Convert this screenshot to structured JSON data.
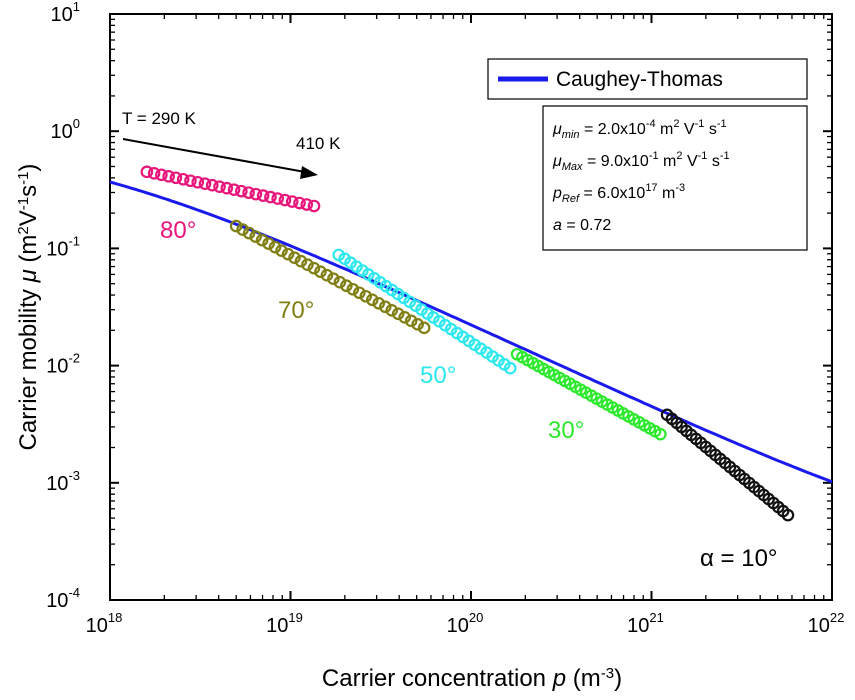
{
  "chart_data": {
    "type": "scatter",
    "xlabel": "Carrier concentration",
    "xlabel_symbol": "p",
    "xlabel_unit": "(m",
    "xlabel_unit_exp": "-3",
    "xlabel_unit_end": ")",
    "ylabel": "Carrier mobility",
    "ylabel_symbol": "μ",
    "ylabel_unit": "(m",
    "ylabel_unit_exp1": "2",
    "ylabel_unit_mid1": "V",
    "ylabel_unit_exp2": "-1",
    "ylabel_unit_mid2": "s",
    "ylabel_unit_exp3": "-1",
    "ylabel_unit_end": ")",
    "x_scale": "log",
    "y_scale": "log",
    "xlim": [
      1e+18,
      1e+22
    ],
    "ylim": [
      0.0001,
      10
    ],
    "x_ticks": [
      {
        "value": 1e+18,
        "base": "10",
        "exp": "18"
      },
      {
        "value": 1e+19,
        "base": "10",
        "exp": "19"
      },
      {
        "value": 1e+20,
        "base": "10",
        "exp": "20"
      },
      {
        "value": 1e+21,
        "base": "10",
        "exp": "21"
      },
      {
        "value": 1e+22,
        "base": "10",
        "exp": "22"
      }
    ],
    "y_ticks": [
      {
        "value": 0.0001,
        "base": "10",
        "exp": "-4"
      },
      {
        "value": 0.001,
        "base": "10",
        "exp": "-3"
      },
      {
        "value": 0.01,
        "base": "10",
        "exp": "-2"
      },
      {
        "value": 0.1,
        "base": "10",
        "exp": "-1"
      },
      {
        "value": 1,
        "base": "10",
        "exp": "0"
      },
      {
        "value": 10,
        "base": "10",
        "exp": "1"
      }
    ],
    "grid": false,
    "legend": {
      "placement": "top-right",
      "entries": [
        "Caughey-Thomas"
      ]
    },
    "fit": {
      "name": "Caughey-Thomas",
      "color": "#1a1aee",
      "mu_min": 0.0002,
      "mu_max": 0.9,
      "p_ref": 6e+17,
      "a": 0.72
    },
    "parameters": [
      {
        "sym": "μ",
        "sub": "min",
        "eq": " = 2.0x10",
        "exp1": "-4",
        "unit": " m",
        "exp2": "2",
        "unit2": " V",
        "exp3": "-1",
        "unit3": " s",
        "exp4": "-1"
      },
      {
        "sym": "μ",
        "sub": "Max",
        "eq": " = 9.0x10",
        "exp1": "-1",
        "unit": " m",
        "exp2": "2",
        "unit2": " V",
        "exp3": "-1",
        "unit3": " s",
        "exp4": "-1"
      },
      {
        "sym": "p",
        "sub": "Ref",
        "eq": " = 6.0x10",
        "exp1": "17",
        "unit": " m",
        "exp2": "-3",
        "unit2": "",
        "exp3": "",
        "unit3": "",
        "exp4": ""
      },
      {
        "sym": "a",
        "sub": "",
        "eq": " = 0.72",
        "exp1": "",
        "unit": "",
        "exp2": "",
        "unit2": "",
        "exp3": "",
        "unit3": "",
        "exp4": ""
      }
    ],
    "series": [
      {
        "label": "80°",
        "color": "#e8157a",
        "p_start": 1.6e+18,
        "p_end": 1.35e+19,
        "mu_start": 0.45,
        "mu_end": 0.23,
        "count": 24
      },
      {
        "label": "70°",
        "color": "#7f7f14",
        "p_start": 5e+18,
        "p_end": 5.5e+19,
        "mu_start": 0.155,
        "mu_end": 0.021,
        "count": 30
      },
      {
        "label": "50°",
        "color": "#2de8ee",
        "p_start": 1.85e+19,
        "p_end": 1.65e+20,
        "mu_start": 0.088,
        "mu_end": 0.0095,
        "count": 30
      },
      {
        "label": "30°",
        "color": "#2ee82e",
        "p_start": 1.8e+20,
        "p_end": 1.12e+21,
        "mu_start": 0.0125,
        "mu_end": 0.0026,
        "count": 28
      },
      {
        "label": "α = 10°",
        "color": "#111111",
        "p_start": 1.22e+21,
        "p_end": 5.7e+21,
        "mu_start": 0.0038,
        "mu_end": 0.00053,
        "count": 26
      }
    ],
    "annotations": {
      "arrow_start_label": "T = 290 K",
      "arrow_end_label": "410 K"
    }
  }
}
